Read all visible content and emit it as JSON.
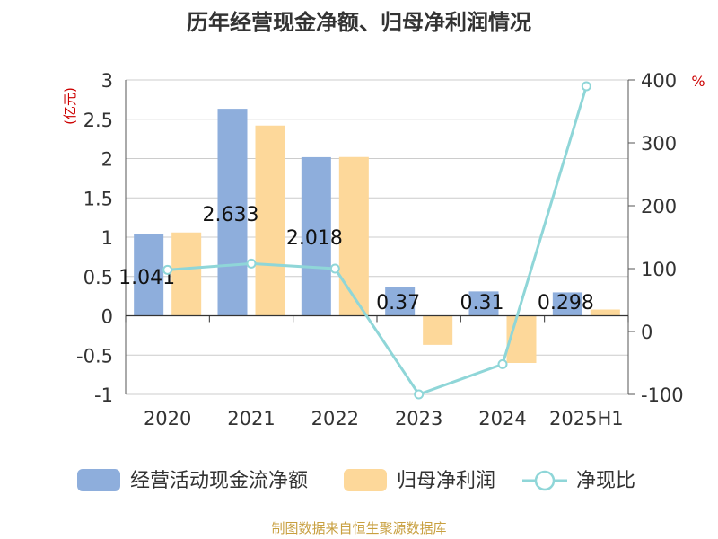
{
  "chart_data": {
    "type": "bar",
    "title": "历年经营现金净额、归母净利润情况",
    "ylabel": "(亿元)",
    "y2label": "%",
    "categories": [
      "2020",
      "2021",
      "2022",
      "2023",
      "2024",
      "2025H1"
    ],
    "ylim": [
      -1,
      3
    ],
    "yticks": [
      "3",
      "2.5",
      "2",
      "1.5",
      "1",
      "0.5",
      "0",
      "-0.5",
      "-1"
    ],
    "y2lim": [
      -100,
      400
    ],
    "y2ticks": [
      "400",
      "300",
      "200",
      "100",
      "0",
      "-100"
    ],
    "series": [
      {
        "name": "经营活动现金流净额",
        "type": "bar",
        "color": "#8eaedc",
        "values": [
          1.041,
          2.633,
          2.018,
          0.37,
          0.31,
          0.298
        ],
        "labels": [
          "1.041",
          "2.633",
          "2.018",
          "0.37",
          "0.31",
          "0.298"
        ]
      },
      {
        "name": "归母净利润",
        "type": "bar",
        "color": "#fdd89a",
        "values": [
          1.06,
          2.42,
          2.02,
          -0.37,
          -0.6,
          0.08
        ]
      },
      {
        "name": "净现比",
        "type": "line",
        "axis": "right",
        "color": "#8fd6d8",
        "values": [
          98,
          108,
          100,
          -100,
          -52,
          390
        ]
      }
    ],
    "legend_position": "bottom",
    "grid": true,
    "source": "制图数据来自恒生聚源数据库"
  }
}
